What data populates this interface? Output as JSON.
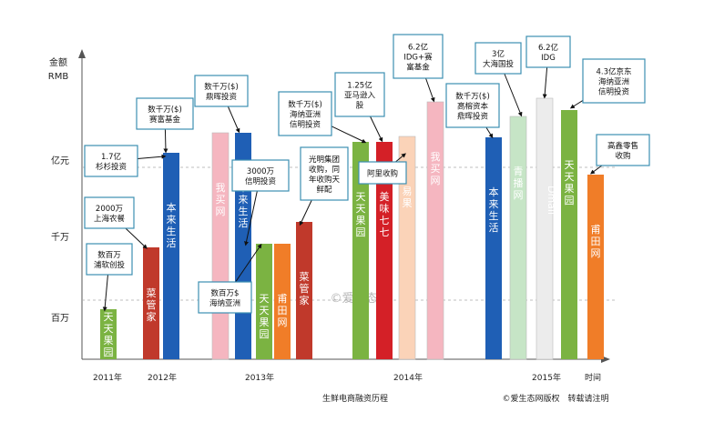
{
  "chart_data": {
    "type": "bar",
    "ylabel": "金额\nRMB",
    "y_levels": [
      "亿元",
      "千万",
      "百万"
    ],
    "x_ticks": [
      "2011年",
      "2012年",
      "2013年",
      "2014年",
      "2015年",
      "时间"
    ],
    "footer_left": "生鲜电商融资历程",
    "footer_right": "©爱生态网版权　转载请注明",
    "watermark": "©爱生态网",
    "bars": [
      {
        "label": "天天果园",
        "color": "#7bb342",
        "amount": "数百万",
        "year": "2011"
      },
      {
        "label": "菜管家",
        "color": "#c0392b",
        "amount": "2000万",
        "year": "2012"
      },
      {
        "label": "本来生活",
        "color": "#1f5fb5",
        "amount": "1.7亿",
        "year": "2012"
      },
      {
        "label": "我买网",
        "color": "#f5b6c0",
        "amount": "数千万($)",
        "year": "2013"
      },
      {
        "label": "本来生活",
        "color": "#1f5fb5",
        "amount": "数千万($)",
        "year": "2013"
      },
      {
        "label": "天天果园",
        "color": "#7bb342",
        "amount": "数百万$",
        "year": "2013"
      },
      {
        "label": "甫田网",
        "color": "#f07d28",
        "amount": "3000万",
        "year": "2013"
      },
      {
        "label": "菜管家",
        "color": "#c0392b",
        "amount": "光明集团收购",
        "year": "2013"
      },
      {
        "label": "天天果园",
        "color": "#7bb342",
        "amount": "数千万($)",
        "year": "2014"
      },
      {
        "label": "美味七七",
        "color": "#d42027",
        "amount": "1.25亿",
        "year": "2014"
      },
      {
        "label": "易果",
        "color": "#fbd3b8",
        "amount": "阿里收购",
        "year": "2014"
      },
      {
        "label": "我买网",
        "color": "#f5b6c0",
        "amount": "6.2亿",
        "year": "2014"
      },
      {
        "label": "本来生活",
        "color": "#1f5fb5",
        "amount": "数千万($)",
        "year": "2014"
      },
      {
        "label": "青播网",
        "color": "#c6e5c6",
        "amount": "3亿",
        "year": "2014"
      },
      {
        "label": "Dmall",
        "color": "#ececec",
        "amount": "6.2亿",
        "year": "2015"
      },
      {
        "label": "天天果园",
        "color": "#7bb342",
        "amount": "4.3亿",
        "year": "2015"
      },
      {
        "label": "甫田网",
        "color": "#f07d28",
        "amount": "高鑫零售收购",
        "year": "2015"
      }
    ],
    "callouts": [
      "数百万\n浦软创投",
      "2000万\n上海农餐",
      "1.7亿\n杉杉投资",
      "数千万($)\n赛富基金",
      "数千万($)\n鼎晖投资",
      "3000万\n信明投资",
      "数百万$\n海纳亚洲",
      "光明集团\n收购，同\n年收购天\n鲜配",
      "数千万($)\n海纳亚洲\n信明投资",
      "1.25亿\n亚马逊入\n股",
      "阿里收购",
      "6.2亿\nIDG+赛\n富基金",
      "数千万($)\n高榕资本\n鼎晖投资",
      "3亿\n大海国投",
      "6.2亿\nIDG",
      "4.3亿京东\n海纳亚洲\n信明投资",
      "高鑫零售\n收购"
    ]
  }
}
